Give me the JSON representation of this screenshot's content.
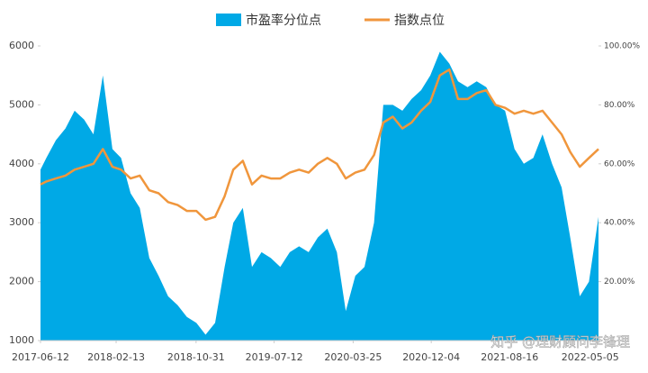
{
  "chart_data": {
    "type": "combo",
    "x": [
      "2017-06-12",
      "2017-07-01",
      "2017-08-01",
      "2017-09-01",
      "2017-10-01",
      "2017-11-01",
      "2017-12-01",
      "2018-01-01",
      "2018-02-01",
      "2018-03-01",
      "2018-04-01",
      "2018-05-01",
      "2018-06-01",
      "2018-07-01",
      "2018-08-01",
      "2018-09-01",
      "2018-10-01",
      "2018-11-01",
      "2018-12-01",
      "2019-01-01",
      "2019-02-01",
      "2019-03-01",
      "2019-04-01",
      "2019-05-01",
      "2019-06-01",
      "2019-07-01",
      "2019-08-01",
      "2019-09-01",
      "2019-10-01",
      "2019-11-01",
      "2019-12-01",
      "2020-01-01",
      "2020-02-01",
      "2020-03-01",
      "2020-04-01",
      "2020-05-01",
      "2020-06-01",
      "2020-07-01",
      "2020-08-01",
      "2020-09-01",
      "2020-10-01",
      "2020-11-01",
      "2020-12-01",
      "2021-01-01",
      "2021-02-01",
      "2021-03-01",
      "2021-04-01",
      "2021-05-01",
      "2021-06-01",
      "2021-07-01",
      "2021-08-01",
      "2021-09-01",
      "2021-10-01",
      "2021-11-01",
      "2021-12-01",
      "2022-01-01",
      "2022-02-01",
      "2022-03-01",
      "2022-04-01",
      "2022-05-01",
      "2022-06-01"
    ],
    "series": [
      {
        "name": "市盈率分位点",
        "type": "area",
        "axis": "y2",
        "color": "#00a9e6",
        "values": [
          58,
          62,
          68,
          72,
          78,
          75,
          70,
          90,
          65,
          62,
          50,
          45,
          28,
          22,
          15,
          12,
          8,
          6,
          2,
          6,
          25,
          40,
          45,
          25,
          30,
          28,
          25,
          30,
          32,
          30,
          35,
          38,
          30,
          10,
          22,
          25,
          40,
          80,
          80,
          78,
          82,
          85,
          90,
          98,
          94,
          88,
          86,
          88,
          86,
          80,
          78,
          65,
          60,
          62,
          70,
          60,
          52,
          35,
          15,
          20,
          42
        ]
      },
      {
        "name": "指数点位",
        "type": "line",
        "color": "#f0963c",
        "values": [
          3650,
          3700,
          3750,
          3800,
          3900,
          3950,
          4000,
          4250,
          3950,
          3900,
          3750,
          3800,
          3550,
          3500,
          3350,
          3300,
          3200,
          3200,
          3050,
          3100,
          3450,
          3900,
          4050,
          3650,
          3800,
          3750,
          3750,
          3850,
          3900,
          3850,
          4000,
          4100,
          4000,
          3750,
          3850,
          3900,
          4150,
          4700,
          4800,
          4600,
          4700,
          4900,
          5050,
          5500,
          5600,
          5100,
          5100,
          5200,
          5250,
          5000,
          4950,
          4850,
          4900,
          4850,
          4900,
          4700,
          4500,
          4200,
          3950,
          4100,
          4250
        ]
      }
    ],
    "ylim": [
      1000,
      6000
    ],
    "yticks": [
      1000,
      2000,
      3000,
      4000,
      5000,
      6000
    ],
    "y2lim": [
      0,
      100
    ],
    "y2ticks": [
      {
        "value": 20,
        "label": "20.00%"
      },
      {
        "value": 40,
        "label": "40.00%"
      },
      {
        "value": 60,
        "label": "60.00%"
      },
      {
        "value": 80,
        "label": "80.00%"
      },
      {
        "value": 100,
        "label": "100.00%"
      }
    ],
    "xticks": [
      "2017-06-12",
      "2018-02-13",
      "2018-10-31",
      "2019-07-12",
      "2020-03-25",
      "2020-12-04",
      "2021-08-16",
      "2022-05-05"
    ],
    "legend": "top",
    "watermark": "知乎 @理财顾问李锋理"
  }
}
